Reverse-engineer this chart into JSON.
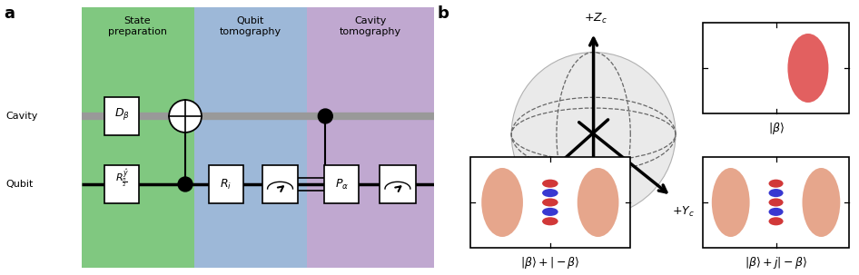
{
  "panel_a_label": "a",
  "panel_b_label": "b",
  "bg_green": "#80c880",
  "bg_blue": "#9db8d8",
  "bg_purple": "#c0a8d0",
  "cavity_wire_color": "#999999",
  "qubit_wire_color": "#000000",
  "section1_title": "State\npreparation",
  "section2_title": "Qubit\ntomography",
  "section3_title": "Cavity\ntomography",
  "cavity_label": "Cavity",
  "qubit_label": "Qubit",
  "blob_red": "#dd4444",
  "blob_orange": "#e09070",
  "fringe_red": "#cc2222",
  "fringe_blue": "#2222cc"
}
